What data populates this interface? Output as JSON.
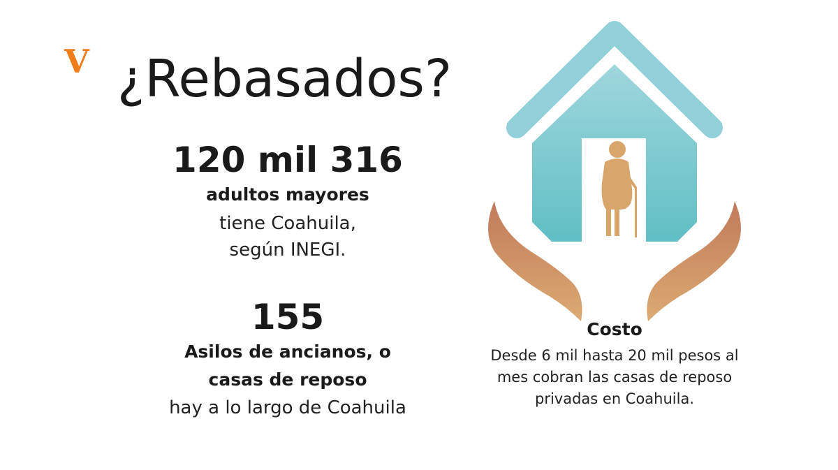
{
  "logo": "V",
  "title": "¿Rebasados?",
  "stats": [
    {
      "number": "120 mil 316",
      "bold_lines": [
        "adultos mayores"
      ],
      "lines": [
        "tiene Coahuila,",
        "según INEGI."
      ]
    },
    {
      "number": "155",
      "bold_lines": [
        "Asilos de ancianos, o",
        "casas de reposo"
      ],
      "lines": [
        "hay a lo largo de Coahuila"
      ]
    }
  ],
  "cost": {
    "heading": "Costo",
    "lines": [
      "Desde 6 mil hasta 20 mil pesos al",
      "mes cobran las casas de reposo",
      "privadas en Coahuila."
    ]
  }
}
